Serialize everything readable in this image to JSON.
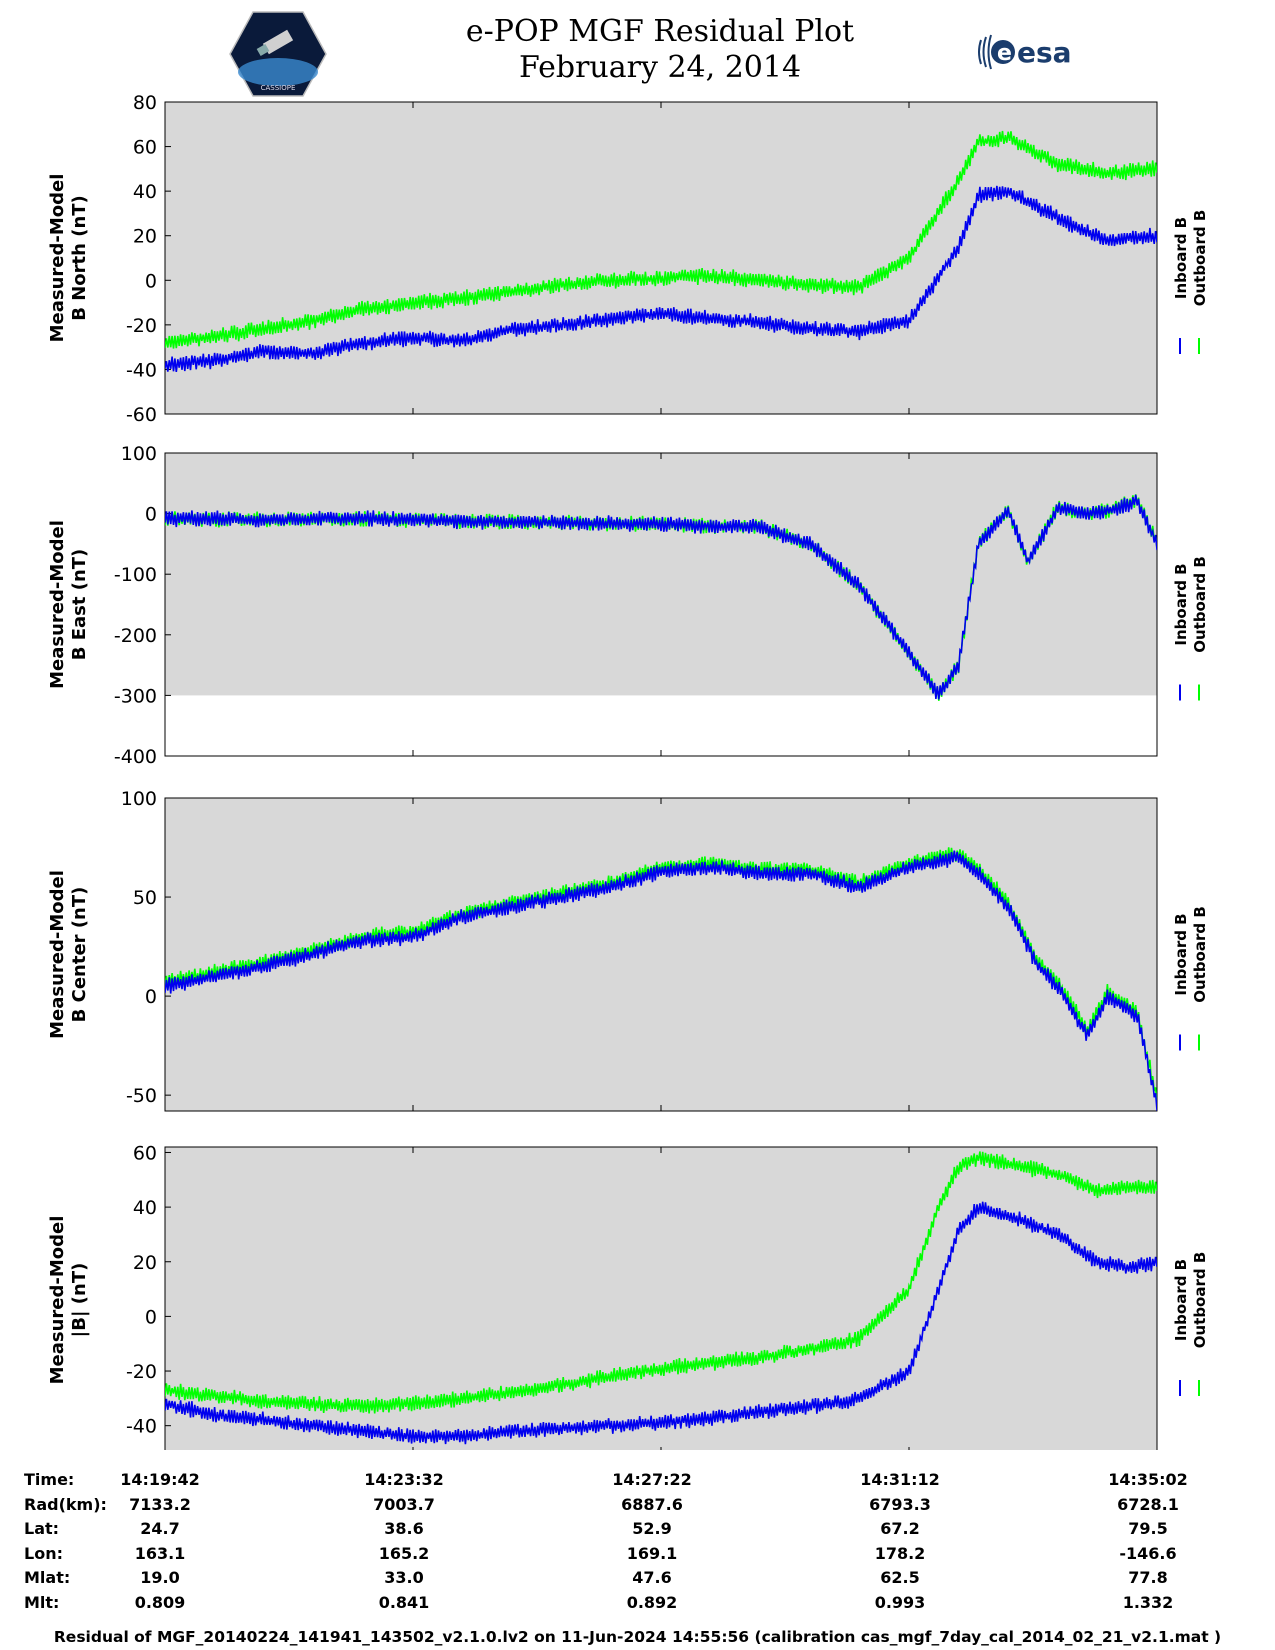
{
  "header": {
    "title_line1": "e-POP MGF Residual Plot",
    "title_line2": "February 24, 2014",
    "logo_left": "CASSIOPE",
    "logo_right": "esa"
  },
  "colors": {
    "inboard": "#0000ee",
    "outboard": "#00ff00",
    "plot_bg": "#d8d8d8"
  },
  "chart_data": [
    {
      "type": "line",
      "ylabel_line1": "Measured-Model",
      "ylabel_line2": "B North (nT)",
      "ylim": [
        -60,
        80
      ],
      "yticks": [
        "-60",
        "-40",
        "-20",
        "0",
        "20",
        "40",
        "60",
        "80"
      ],
      "legend": [
        "Inboard B",
        "Outboard B"
      ],
      "series": [
        {
          "name": "Inboard B",
          "x": [
            0,
            0.05,
            0.1,
            0.15,
            0.2,
            0.25,
            0.3,
            0.35,
            0.4,
            0.45,
            0.5,
            0.55,
            0.6,
            0.65,
            0.7,
            0.75,
            0.8,
            0.82,
            0.85,
            0.9,
            0.95,
            1.0
          ],
          "values": [
            -38,
            -36,
            -32,
            -33,
            -28,
            -26,
            -27,
            -22,
            -20,
            -17,
            -15,
            -17,
            -19,
            -22,
            -23,
            -18,
            15,
            38,
            40,
            28,
            18,
            20
          ]
        },
        {
          "name": "Outboard B",
          "x": [
            0,
            0.05,
            0.1,
            0.15,
            0.2,
            0.25,
            0.3,
            0.35,
            0.4,
            0.45,
            0.5,
            0.55,
            0.6,
            0.65,
            0.7,
            0.75,
            0.8,
            0.82,
            0.85,
            0.9,
            0.95,
            1.0
          ],
          "values": [
            -28,
            -25,
            -22,
            -18,
            -13,
            -10,
            -8,
            -5,
            -2,
            0,
            1,
            2,
            0,
            -2,
            -3,
            10,
            45,
            62,
            64,
            52,
            48,
            50
          ]
        }
      ]
    },
    {
      "type": "line",
      "ylabel_line1": "Measured-Model",
      "ylabel_line2": "B East (nT)",
      "ylim": [
        -400,
        100
      ],
      "yticks": [
        "-400",
        "-300",
        "-200",
        "-100",
        "0",
        "100"
      ],
      "legend": [
        "Inboard B",
        "Outboard B"
      ],
      "series": [
        {
          "name": "Inboard B",
          "x": [
            0,
            0.1,
            0.2,
            0.3,
            0.4,
            0.5,
            0.6,
            0.65,
            0.7,
            0.75,
            0.78,
            0.8,
            0.82,
            0.85,
            0.87,
            0.9,
            0.93,
            0.95,
            0.98,
            1.0
          ],
          "values": [
            -8,
            -10,
            -8,
            -12,
            -15,
            -18,
            -22,
            -50,
            -120,
            -230,
            -300,
            -250,
            -50,
            5,
            -80,
            10,
            0,
            5,
            20,
            -50
          ]
        },
        {
          "name": "Outboard B",
          "x": [
            0,
            0.1,
            0.2,
            0.3,
            0.4,
            0.5,
            0.6,
            0.65,
            0.7,
            0.75,
            0.78,
            0.8,
            0.82,
            0.85,
            0.87,
            0.9,
            0.93,
            0.95,
            0.98,
            1.0
          ],
          "values": [
            -8,
            -10,
            -8,
            -12,
            -15,
            -18,
            -22,
            -50,
            -120,
            -230,
            -300,
            -250,
            -50,
            5,
            -80,
            10,
            0,
            5,
            22,
            -48
          ]
        }
      ]
    },
    {
      "type": "line",
      "ylabel_line1": "Measured-Model",
      "ylabel_line2": "B Center (nT)",
      "ylim": [
        -58,
        100
      ],
      "yticks": [
        "-50",
        "0",
        "50",
        "100"
      ],
      "legend": [
        "Inboard B",
        "Outboard B"
      ],
      "series": [
        {
          "name": "Inboard B",
          "x": [
            0,
            0.1,
            0.2,
            0.25,
            0.3,
            0.35,
            0.4,
            0.45,
            0.5,
            0.55,
            0.6,
            0.65,
            0.7,
            0.75,
            0.8,
            0.82,
            0.85,
            0.88,
            0.9,
            0.93,
            0.95,
            0.98,
            1.0
          ],
          "values": [
            5,
            15,
            28,
            30,
            40,
            45,
            50,
            55,
            63,
            65,
            62,
            62,
            55,
            65,
            70,
            62,
            45,
            15,
            5,
            -20,
            0,
            -10,
            -55
          ]
        },
        {
          "name": "Outboard B",
          "x": [
            0,
            0.1,
            0.2,
            0.25,
            0.3,
            0.35,
            0.4,
            0.45,
            0.5,
            0.55,
            0.6,
            0.65,
            0.7,
            0.75,
            0.8,
            0.82,
            0.85,
            0.88,
            0.9,
            0.93,
            0.95,
            0.98,
            1.0
          ],
          "values": [
            7,
            17,
            30,
            32,
            42,
            47,
            52,
            57,
            65,
            67,
            64,
            64,
            57,
            67,
            72,
            64,
            47,
            17,
            7,
            -18,
            2,
            -8,
            -52
          ]
        }
      ]
    },
    {
      "type": "line",
      "ylabel_line1": "Measured-Model",
      "ylabel_line2": "|B| (nT)",
      "ylim": [
        -50,
        62
      ],
      "yticks": [
        "-40",
        "-20",
        "0",
        "20",
        "40",
        "60"
      ],
      "legend": [
        "Inboard B",
        "Outboard B"
      ],
      "series": [
        {
          "name": "Inboard B",
          "x": [
            0,
            0.05,
            0.1,
            0.15,
            0.2,
            0.25,
            0.3,
            0.35,
            0.4,
            0.45,
            0.5,
            0.55,
            0.6,
            0.65,
            0.7,
            0.75,
            0.78,
            0.8,
            0.82,
            0.85,
            0.9,
            0.94,
            0.97,
            1.0
          ],
          "values": [
            -32,
            -36,
            -38,
            -40,
            -42,
            -44,
            -44,
            -42,
            -41,
            -40,
            -39,
            -37,
            -35,
            -33,
            -30,
            -20,
            10,
            32,
            40,
            37,
            30,
            20,
            18,
            20
          ]
        },
        {
          "name": "Outboard B",
          "x": [
            0,
            0.05,
            0.1,
            0.15,
            0.2,
            0.25,
            0.3,
            0.35,
            0.4,
            0.45,
            0.5,
            0.55,
            0.6,
            0.65,
            0.7,
            0.75,
            0.78,
            0.8,
            0.82,
            0.85,
            0.9,
            0.94,
            0.97,
            1.0
          ],
          "values": [
            -27,
            -29,
            -31,
            -32,
            -33,
            -32,
            -30,
            -28,
            -25,
            -22,
            -19,
            -17,
            -15,
            -12,
            -8,
            10,
            40,
            55,
            58,
            56,
            52,
            46,
            47,
            47
          ]
        }
      ]
    }
  ],
  "table": {
    "labels": [
      "Time:",
      "Rad(km):",
      "Lat:",
      "Lon:",
      "Mlat:",
      "Mlt:"
    ],
    "columns": [
      [
        "14:19:42",
        "7133.2",
        "24.7",
        "163.1",
        "19.0",
        "0.809"
      ],
      [
        "14:23:32",
        "7003.7",
        "38.6",
        "165.2",
        "33.0",
        "0.841"
      ],
      [
        "14:27:22",
        "6887.6",
        "52.9",
        "169.1",
        "47.6",
        "0.892"
      ],
      [
        "14:31:12",
        "6793.3",
        "67.2",
        "178.2",
        "62.5",
        "0.993"
      ],
      [
        "14:35:02",
        "6728.1",
        "79.5",
        "-146.6",
        "77.8",
        "1.332"
      ]
    ]
  },
  "footer": "Residual of MGF_20140224_141941_143502_v2.1.0.lv2 on 11-Jun-2024 14:55:56 (calibration cas_mgf_7day_cal_2014_02_21_v2.1.mat )"
}
